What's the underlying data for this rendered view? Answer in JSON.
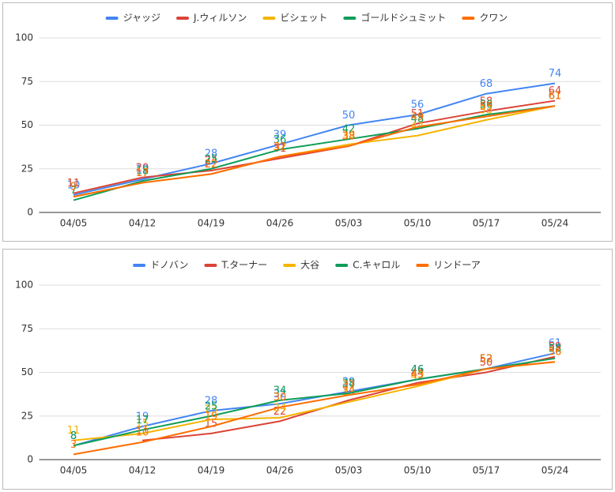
{
  "chart_data": [
    {
      "type": "line",
      "legend": "top",
      "grid": true,
      "categories": [
        "04/05",
        "04/12",
        "04/19",
        "04/26",
        "05/03",
        "05/10",
        "05/17",
        "05/24"
      ],
      "ylim": [
        0,
        100
      ],
      "yticks": [
        0,
        25,
        50,
        75,
        100
      ],
      "series": [
        {
          "name": "ジャッジ",
          "color": "#4285f4",
          "values": [
            10,
            19,
            28,
            39,
            50,
            56,
            68,
            74
          ]
        },
        {
          "name": "J.ウィルソン",
          "color": "#db4437",
          "values": [
            11,
            20,
            24,
            31,
            38,
            51,
            58,
            64
          ]
        },
        {
          "name": "ビシェット",
          "color": "#f4b400",
          "values": [
            9,
            17,
            22,
            32,
            39,
            44,
            53,
            61
          ]
        },
        {
          "name": "ゴールドシュミット",
          "color": "#0f9d58",
          "values": [
            7,
            18,
            25,
            36,
            42,
            48,
            56,
            61
          ]
        },
        {
          "name": "クワン",
          "color": "#ff6d00",
          "values": [
            9,
            17,
            22,
            32,
            38,
            49,
            55,
            61
          ]
        }
      ]
    },
    {
      "type": "line",
      "legend": "top",
      "grid": true,
      "categories": [
        "04/05",
        "04/12",
        "04/19",
        "04/26",
        "05/03",
        "05/10",
        "05/17",
        "05/24"
      ],
      "ylim": [
        0,
        100
      ],
      "yticks": [
        0,
        25,
        50,
        75,
        100
      ],
      "series": [
        {
          "name": "ドノバン",
          "color": "#4285f4",
          "values": [
            8,
            19,
            28,
            32,
            39,
            46,
            52,
            61
          ]
        },
        {
          "name": "T.ターナー",
          "color": "#db4437",
          "values": [
            null,
            11,
            15,
            22,
            34,
            44,
            50,
            59
          ]
        },
        {
          "name": "大谷",
          "color": "#f4b400",
          "values": [
            11,
            15,
            23,
            24,
            33,
            42,
            52,
            56
          ]
        },
        {
          "name": "C.キャロル",
          "color": "#0f9d58",
          "values": [
            8,
            17,
            25,
            34,
            38,
            46,
            52,
            58
          ]
        },
        {
          "name": "リンドーア",
          "color": "#ff6d00",
          "values": [
            3,
            10,
            19,
            30,
            37,
            43,
            52,
            56
          ]
        }
      ]
    }
  ]
}
